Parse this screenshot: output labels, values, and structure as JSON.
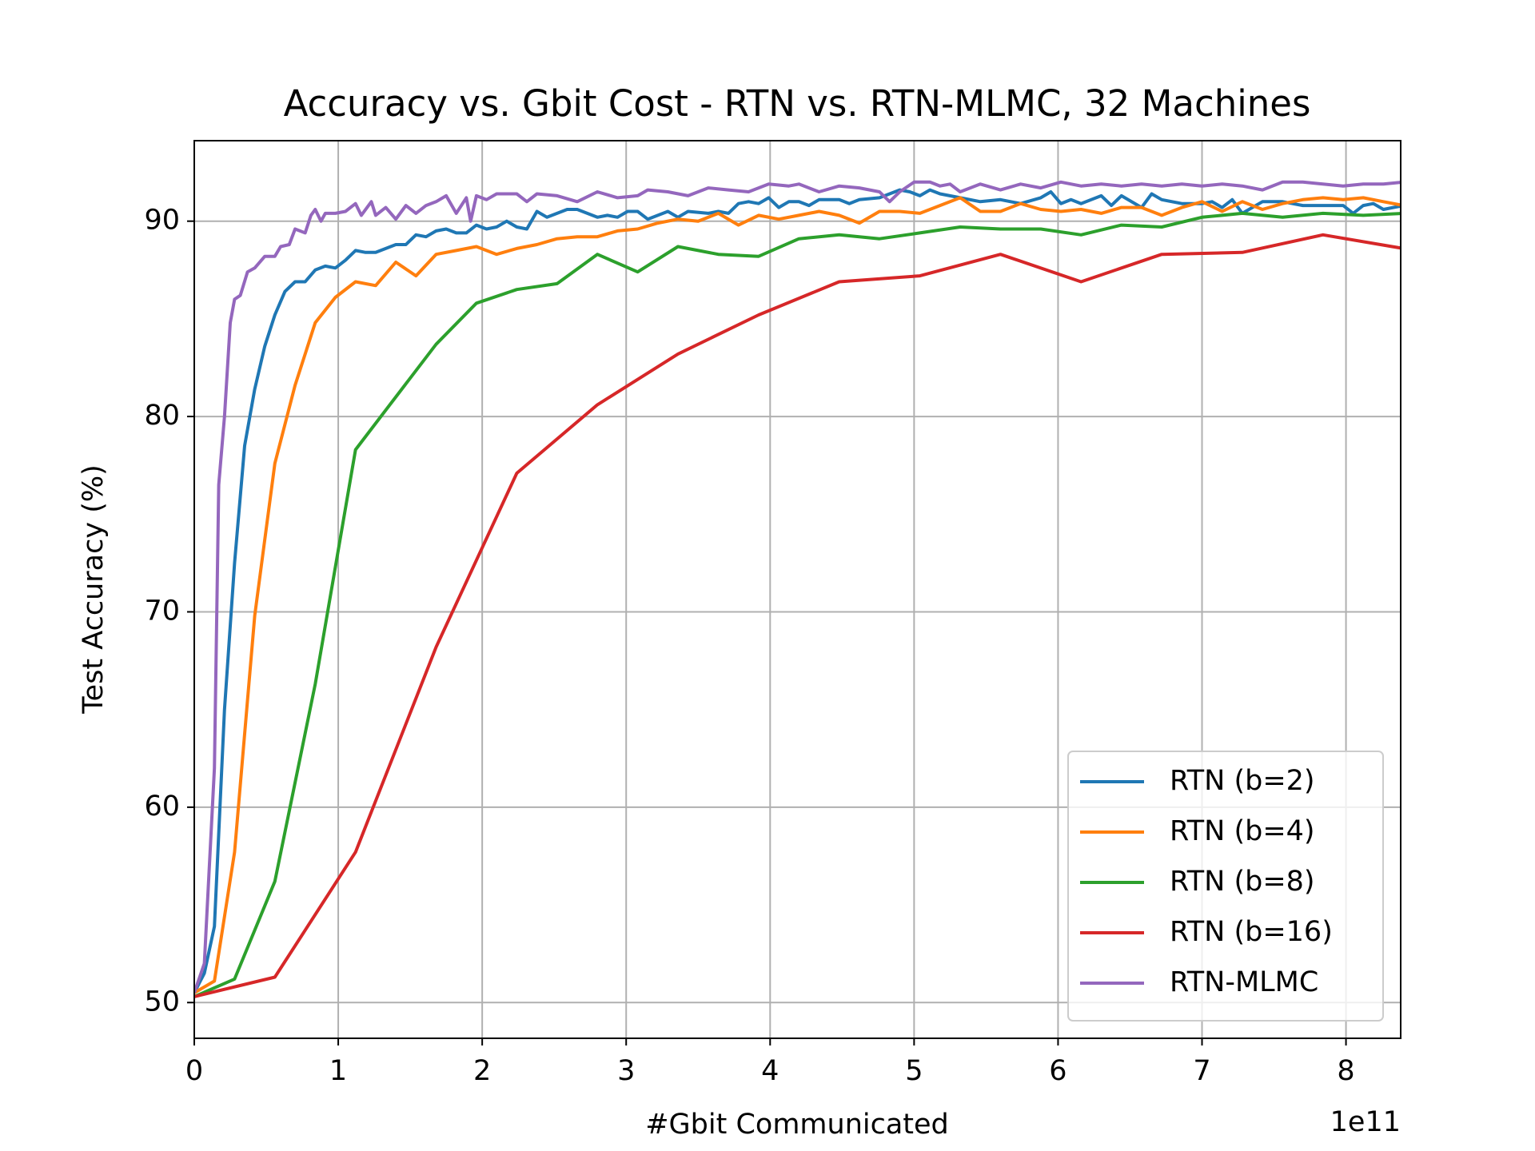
{
  "chart_data": {
    "type": "line",
    "title": "Accuracy vs. Gbit Cost - RTN vs. RTN-MLMC, 32 Machines",
    "xlabel": "#Gbit Communicated",
    "ylabel": "Test Accuracy (%)",
    "x_offset": "1e11",
    "xlim": [
      0,
      8.38
    ],
    "ylim": [
      48.17,
      94.12
    ],
    "xticks": [
      0,
      1,
      2,
      3,
      4,
      5,
      6,
      7,
      8
    ],
    "yticks": [
      50,
      60,
      70,
      80,
      90
    ],
    "grid": true,
    "legend": "lower right",
    "series": [
      {
        "name": "RTN (b=2)",
        "color": "#1f77b4",
        "x": [
          0,
          0.07,
          0.14,
          0.21,
          0.28,
          0.35,
          0.42,
          0.49,
          0.56,
          0.63,
          0.7,
          0.77,
          0.84,
          0.91,
          0.98,
          1.05,
          1.12,
          1.19,
          1.26,
          1.4,
          1.47,
          1.54,
          1.61,
          1.68,
          1.75,
          1.82,
          1.89,
          1.96,
          2.03,
          2.1,
          2.17,
          2.24,
          2.31,
          2.38,
          2.45,
          2.59,
          2.66,
          2.8,
          2.87,
          2.94,
          3.01,
          3.08,
          3.15,
          3.29,
          3.36,
          3.43,
          3.57,
          3.64,
          3.71,
          3.78,
          3.85,
          3.92,
          3.99,
          4.06,
          4.13,
          4.2,
          4.27,
          4.34,
          4.48,
          4.55,
          4.62,
          4.76,
          4.9,
          4.97,
          5.04,
          5.11,
          5.18,
          5.32,
          5.46,
          5.6,
          5.74,
          5.88,
          5.95,
          6.02,
          6.09,
          6.16,
          6.3,
          6.37,
          6.44,
          6.58,
          6.65,
          6.72,
          6.86,
          7.0,
          7.07,
          7.14,
          7.21,
          7.28,
          7.42,
          7.56,
          7.7,
          7.84,
          7.98,
          8.05,
          8.12,
          8.19,
          8.26,
          8.4
        ],
        "values": [
          50.5,
          51.5,
          53.9,
          65.0,
          72.5,
          78.5,
          81.4,
          83.6,
          85.2,
          86.4,
          86.9,
          86.9,
          87.5,
          87.7,
          87.6,
          88.0,
          88.5,
          88.4,
          88.4,
          88.8,
          88.8,
          89.3,
          89.2,
          89.5,
          89.6,
          89.4,
          89.4,
          89.8,
          89.6,
          89.7,
          90.0,
          89.7,
          89.6,
          90.5,
          90.2,
          90.6,
          90.6,
          90.2,
          90.3,
          90.2,
          90.5,
          90.5,
          90.1,
          90.5,
          90.2,
          90.5,
          90.4,
          90.5,
          90.4,
          90.9,
          91.0,
          90.9,
          91.2,
          90.7,
          91.0,
          91.0,
          90.8,
          91.1,
          91.1,
          90.9,
          91.1,
          91.2,
          91.6,
          91.5,
          91.3,
          91.6,
          91.4,
          91.2,
          91.0,
          91.1,
          90.9,
          91.2,
          91.5,
          90.9,
          91.1,
          90.9,
          91.3,
          90.8,
          91.3,
          90.7,
          91.4,
          91.1,
          90.9,
          90.9,
          91.0,
          90.7,
          91.1,
          90.4,
          91.0,
          91.0,
          90.8,
          90.8,
          90.8,
          90.4,
          90.8,
          90.9,
          90.6,
          90.8
        ]
      },
      {
        "name": "RTN (b=4)",
        "color": "#ff7f0e",
        "x": [
          0,
          0.14,
          0.28,
          0.42,
          0.56,
          0.7,
          0.84,
          0.98,
          1.12,
          1.26,
          1.4,
          1.54,
          1.68,
          1.82,
          1.96,
          2.1,
          2.24,
          2.38,
          2.52,
          2.66,
          2.8,
          2.94,
          3.08,
          3.22,
          3.36,
          3.5,
          3.64,
          3.78,
          3.92,
          4.06,
          4.2,
          4.34,
          4.48,
          4.62,
          4.76,
          4.9,
          5.04,
          5.18,
          5.32,
          5.46,
          5.6,
          5.74,
          5.88,
          6.02,
          6.16,
          6.3,
          6.44,
          6.58,
          6.72,
          6.86,
          7.0,
          7.14,
          7.28,
          7.42,
          7.56,
          7.7,
          7.84,
          7.98,
          8.12,
          8.26,
          8.4
        ],
        "values": [
          50.5,
          51.1,
          57.7,
          69.8,
          77.6,
          81.6,
          84.8,
          86.1,
          86.9,
          86.7,
          87.9,
          87.2,
          88.3,
          88.5,
          88.7,
          88.3,
          88.6,
          88.8,
          89.1,
          89.2,
          89.2,
          89.5,
          89.6,
          89.9,
          90.1,
          90.0,
          90.4,
          89.8,
          90.3,
          90.1,
          90.3,
          90.5,
          90.3,
          89.9,
          90.5,
          90.5,
          90.4,
          90.8,
          91.2,
          90.5,
          90.5,
          90.9,
          90.6,
          90.5,
          90.6,
          90.4,
          90.7,
          90.7,
          90.3,
          90.7,
          91.0,
          90.5,
          91.0,
          90.6,
          90.9,
          91.1,
          91.2,
          91.1,
          91.2,
          91.0,
          90.8
        ]
      },
      {
        "name": "RTN (b=8)",
        "color": "#2ca02c",
        "x": [
          0,
          0.28,
          0.56,
          0.84,
          1.12,
          1.4,
          1.68,
          1.96,
          2.24,
          2.52,
          2.8,
          3.08,
          3.36,
          3.64,
          3.92,
          4.2,
          4.48,
          4.76,
          5.04,
          5.32,
          5.6,
          5.88,
          6.16,
          6.44,
          6.72,
          7.0,
          7.28,
          7.56,
          7.84,
          8.12,
          8.4
        ],
        "values": [
          50.3,
          51.2,
          56.2,
          66.3,
          78.3,
          81.0,
          83.7,
          85.8,
          86.5,
          86.8,
          88.3,
          87.4,
          88.7,
          88.3,
          88.2,
          89.1,
          89.3,
          89.1,
          89.4,
          89.7,
          89.6,
          89.6,
          89.3,
          89.8,
          89.7,
          90.2,
          90.4,
          90.2,
          90.4,
          90.3,
          90.4
        ]
      },
      {
        "name": "RTN (b=16)",
        "color": "#d62728",
        "x": [
          0,
          0.56,
          1.12,
          1.68,
          2.24,
          2.8,
          3.36,
          3.92,
          4.48,
          5.04,
          5.6,
          6.16,
          6.72,
          7.28,
          7.84,
          8.4
        ],
        "values": [
          50.3,
          51.3,
          57.7,
          68.2,
          77.1,
          80.6,
          83.2,
          85.2,
          86.9,
          87.2,
          88.3,
          86.9,
          88.3,
          88.4,
          89.3,
          88.6
        ]
      },
      {
        "name": "RTN-MLMC",
        "color": "#9467bd",
        "x": [
          0,
          0.07,
          0.14,
          0.17,
          0.21,
          0.25,
          0.28,
          0.32,
          0.37,
          0.42,
          0.49,
          0.56,
          0.6,
          0.66,
          0.7,
          0.77,
          0.81,
          0.84,
          0.88,
          0.91,
          0.98,
          1.05,
          1.12,
          1.16,
          1.23,
          1.26,
          1.33,
          1.4,
          1.47,
          1.54,
          1.61,
          1.68,
          1.75,
          1.82,
          1.89,
          1.92,
          1.96,
          2.03,
          2.1,
          2.24,
          2.31,
          2.38,
          2.52,
          2.66,
          2.8,
          2.94,
          3.08,
          3.15,
          3.29,
          3.43,
          3.57,
          3.71,
          3.85,
          3.99,
          4.13,
          4.2,
          4.34,
          4.48,
          4.62,
          4.76,
          4.83,
          4.9,
          5.0,
          5.11,
          5.18,
          5.25,
          5.32,
          5.46,
          5.6,
          5.74,
          5.88,
          6.02,
          6.16,
          6.3,
          6.44,
          6.58,
          6.72,
          6.86,
          7.0,
          7.14,
          7.28,
          7.42,
          7.56,
          7.7,
          7.84,
          7.98,
          8.12,
          8.26,
          8.4
        ],
        "values": [
          50.5,
          52.0,
          62.0,
          76.5,
          80,
          84.8,
          86.0,
          86.2,
          87.4,
          87.6,
          88.2,
          88.2,
          88.7,
          88.8,
          89.6,
          89.4,
          90.3,
          90.6,
          90.0,
          90.4,
          90.4,
          90.5,
          90.9,
          90.3,
          91.0,
          90.3,
          90.7,
          90.1,
          90.8,
          90.4,
          90.8,
          91.0,
          91.3,
          90.4,
          91.2,
          90.0,
          91.3,
          91.1,
          91.4,
          91.4,
          91.0,
          91.4,
          91.3,
          91.0,
          91.5,
          91.2,
          91.3,
          91.6,
          91.5,
          91.3,
          91.7,
          91.6,
          91.5,
          91.9,
          91.8,
          91.9,
          91.5,
          91.8,
          91.7,
          91.5,
          91.0,
          91.5,
          92.0,
          92.0,
          91.8,
          91.9,
          91.5,
          91.9,
          91.6,
          91.9,
          91.7,
          92.0,
          91.8,
          91.9,
          91.8,
          91.9,
          91.8,
          91.9,
          91.8,
          91.9,
          91.8,
          91.6,
          92.0,
          92.0,
          91.9,
          91.8,
          91.9,
          91.9,
          92.0
        ]
      }
    ]
  }
}
